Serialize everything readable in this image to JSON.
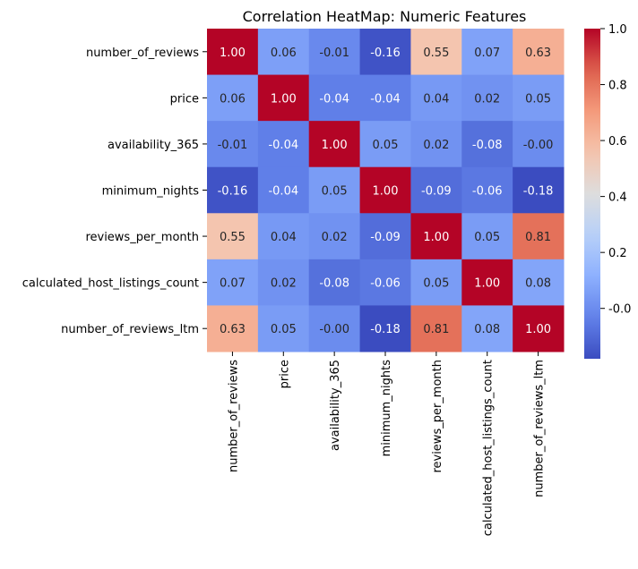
{
  "chart_data": {
    "type": "heatmap",
    "title": "Correlation HeatMap: Numeric Features",
    "xlabel": "",
    "ylabel": "",
    "rows": [
      "number_of_reviews",
      "price",
      "availability_365",
      "minimum_nights",
      "reviews_per_month",
      "calculated_host_listings_count",
      "number_of_reviews_ltm"
    ],
    "columns": [
      "number_of_reviews",
      "price",
      "availability_365",
      "minimum_nights",
      "reviews_per_month",
      "calculated_host_listings_count",
      "number_of_reviews_ltm"
    ],
    "values": [
      [
        1.0,
        0.06,
        -0.01,
        -0.16,
        0.55,
        0.07,
        0.63
      ],
      [
        0.06,
        1.0,
        -0.04,
        -0.04,
        0.04,
        0.02,
        0.05
      ],
      [
        -0.01,
        -0.04,
        1.0,
        0.05,
        0.02,
        -0.08,
        -0.0
      ],
      [
        -0.16,
        -0.04,
        0.05,
        1.0,
        -0.09,
        -0.06,
        -0.18
      ],
      [
        0.55,
        0.04,
        0.02,
        -0.09,
        1.0,
        0.05,
        0.81
      ],
      [
        0.07,
        0.02,
        -0.08,
        -0.06,
        0.05,
        1.0,
        0.08
      ],
      [
        0.63,
        0.05,
        -0.0,
        -0.18,
        0.81,
        0.08,
        1.0
      ]
    ],
    "colormap": "coolwarm",
    "color_range": [
      -0.18,
      1.0
    ],
    "annotations_format": "0.00",
    "colorbar": {
      "ticks": [
        "-0.0",
        "0.2",
        "0.4",
        "0.6",
        "0.8",
        "1.0"
      ],
      "tick_values": [
        0.0,
        0.2,
        0.4,
        0.6,
        0.8,
        1.0
      ]
    }
  }
}
